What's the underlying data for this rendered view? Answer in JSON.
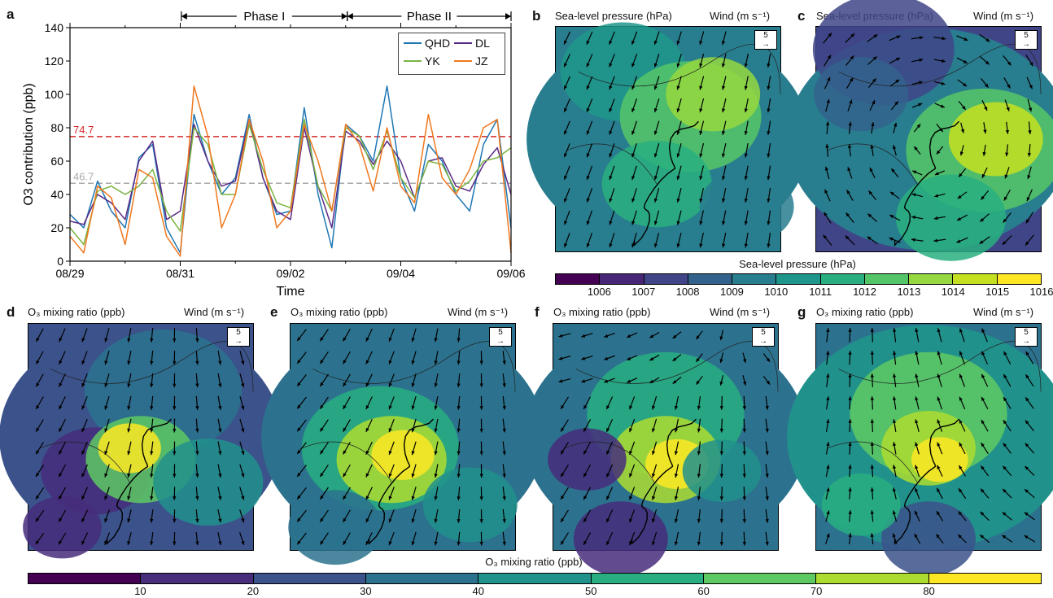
{
  "chart_data": [
    {
      "panel": "a",
      "type": "line",
      "xlabel": "Time",
      "ylabel": "O3 contribution (ppb)",
      "ylim": [
        0,
        140
      ],
      "yticks": [
        "0",
        "20",
        "40",
        "60",
        "80",
        "100",
        "120",
        "140"
      ],
      "xticks": [
        "08/29",
        "08/31",
        "09/02",
        "09/04",
        "09/06"
      ],
      "phases": [
        "Phase I",
        "Phase II"
      ],
      "reference_lines": [
        {
          "label": "74.7",
          "value": 74.7,
          "color": "#d62728"
        },
        {
          "label": "46.7",
          "value": 46.7,
          "color": "#aaaaaa"
        }
      ],
      "series": [
        {
          "name": "QHD",
          "color": "#1f77b4",
          "x": [
            0,
            0.25,
            0.5,
            0.75,
            1,
            1.25,
            1.5,
            1.75,
            2,
            2.25,
            2.5,
            2.75,
            3,
            3.25,
            3.5,
            3.75,
            4,
            4.25,
            4.5,
            4.75,
            5,
            5.25,
            5.5,
            5.75,
            6,
            6.25,
            6.5,
            6.75,
            7,
            7.25,
            7.5,
            7.75,
            8
          ],
          "values": [
            28,
            20,
            48,
            30,
            20,
            62,
            70,
            20,
            5,
            88,
            60,
            40,
            50,
            88,
            50,
            28,
            30,
            92,
            40,
            8,
            82,
            75,
            60,
            105,
            50,
            30,
            70,
            60,
            40,
            30,
            70,
            85,
            20
          ]
        },
        {
          "name": "DL",
          "color": "#5b2a86",
          "x": [
            0,
            0.25,
            0.5,
            0.75,
            1,
            1.25,
            1.5,
            1.75,
            2,
            2.25,
            2.5,
            2.75,
            3,
            3.25,
            3.5,
            3.75,
            4,
            4.25,
            4.5,
            4.75,
            5,
            5.25,
            5.5,
            5.75,
            6,
            6.25,
            6.5,
            6.75,
            7,
            7.25,
            7.5,
            7.75,
            8
          ],
          "values": [
            24,
            22,
            40,
            35,
            25,
            60,
            72,
            25,
            30,
            82,
            60,
            45,
            48,
            85,
            50,
            30,
            25,
            80,
            45,
            20,
            78,
            72,
            58,
            72,
            60,
            38,
            60,
            62,
            45,
            42,
            58,
            68,
            40
          ]
        },
        {
          "name": "YK",
          "color": "#7ab341",
          "x": [
            0,
            0.25,
            0.5,
            0.75,
            1,
            1.25,
            1.5,
            1.75,
            2,
            2.25,
            2.5,
            2.75,
            3,
            3.25,
            3.5,
            3.75,
            4,
            4.25,
            4.5,
            4.75,
            5,
            5.25,
            5.5,
            5.75,
            6,
            6.25,
            6.5,
            6.75,
            7,
            7.25,
            7.5,
            7.75,
            8
          ],
          "values": [
            20,
            10,
            42,
            45,
            40,
            45,
            55,
            30,
            18,
            80,
            70,
            40,
            40,
            82,
            55,
            35,
            32,
            85,
            45,
            30,
            80,
            75,
            55,
            78,
            50,
            38,
            60,
            58,
            42,
            48,
            60,
            62,
            68
          ]
        },
        {
          "name": "JZ",
          "color": "#f0781e",
          "x": [
            0,
            0.25,
            0.5,
            0.75,
            1,
            1.25,
            1.5,
            1.75,
            2,
            2.25,
            2.5,
            2.75,
            3,
            3.25,
            3.5,
            3.75,
            4,
            4.25,
            4.5,
            4.75,
            5,
            5.25,
            5.5,
            5.75,
            6,
            6.25,
            6.5,
            6.75,
            7,
            7.25,
            7.5,
            7.75,
            8
          ],
          "values": [
            15,
            5,
            45,
            38,
            10,
            55,
            50,
            15,
            3,
            105,
            75,
            20,
            40,
            85,
            60,
            20,
            30,
            82,
            60,
            30,
            82,
            70,
            42,
            80,
            45,
            35,
            88,
            50,
            40,
            55,
            80,
            85,
            5
          ]
        }
      ]
    },
    {
      "panel": "b",
      "type": "heatmap",
      "title_left": "Sea-level pressure (hPa)",
      "title_right": "Wind (m s⁻¹)",
      "scale_label": "5"
    },
    {
      "panel": "c",
      "type": "heatmap",
      "title_left": "Sea-level pressure (hPa)",
      "title_right": "Wind (m s⁻¹)",
      "scale_label": "5"
    },
    {
      "panel": "d",
      "type": "heatmap",
      "title_left": "O₃ mixing ratio (ppb)",
      "title_right": "Wind (m s⁻¹)",
      "scale_label": "5"
    },
    {
      "panel": "e",
      "type": "heatmap",
      "title_left": "O₃ mixing ratio (ppb)",
      "title_right": "Wind (m s⁻¹)",
      "scale_label": "5"
    },
    {
      "panel": "f",
      "type": "heatmap",
      "title_left": "O₃ mixing ratio (ppb)",
      "title_right": "Wind (m s⁻¹)",
      "scale_label": "5"
    },
    {
      "panel": "g",
      "type": "heatmap",
      "title_left": "O₃ mixing ratio (ppb)",
      "title_right": "Wind (m s⁻¹)",
      "scale_label": "5"
    }
  ],
  "panel_labels": [
    "a",
    "b",
    "c",
    "d",
    "e",
    "f",
    "g"
  ],
  "colorbars": {
    "pressure": {
      "title": "Sea-level pressure (hPa)",
      "ticks": [
        "1006",
        "1007",
        "1008",
        "1009",
        "1010",
        "1011",
        "1012",
        "1013",
        "1014",
        "1015",
        "1016"
      ],
      "colors": [
        "#440154",
        "#482677",
        "#404588",
        "#33638d",
        "#287d8e",
        "#1f968b",
        "#29af7f",
        "#55c667",
        "#95d840",
        "#c5e021",
        "#fde725"
      ]
    },
    "ozone": {
      "title": "O₃ mixing ratio (ppb)",
      "ticks": [
        "10",
        "20",
        "30",
        "40",
        "50",
        "60",
        "70",
        "80"
      ],
      "colors": [
        "#440154",
        "#472d7b",
        "#3b528b",
        "#2c728e",
        "#21918c",
        "#28ae80",
        "#5ec962",
        "#addc30",
        "#fde725"
      ]
    }
  }
}
